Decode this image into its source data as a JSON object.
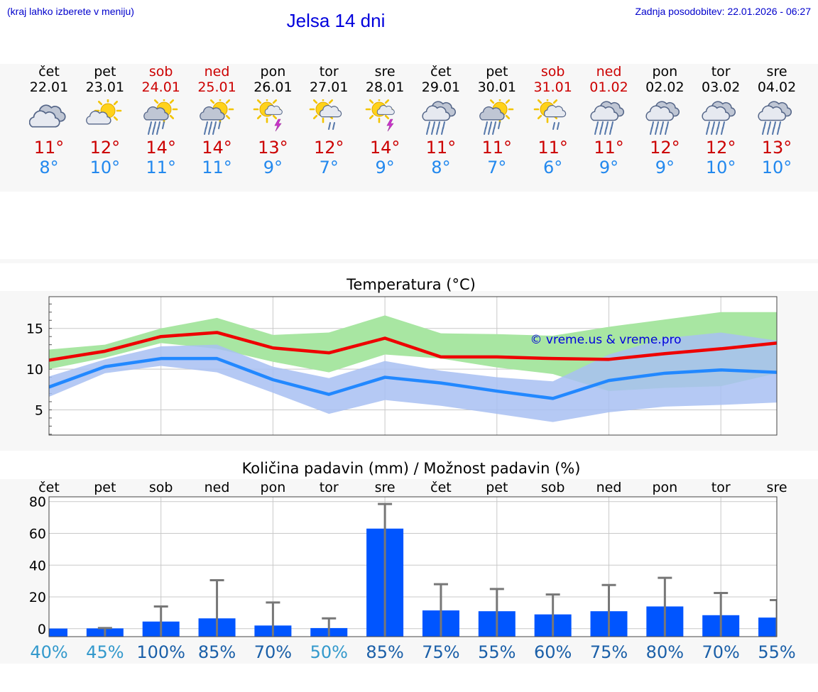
{
  "header": {
    "location_hint": "(kraj lahko izberete v meniju)",
    "title": "Jelsa 14 dni",
    "updated": "Zadnja posodobitev: 22.01.2026 - 06:27"
  },
  "colors": {
    "max_temp": "#cc0000",
    "min_temp": "#2288ee",
    "max_line": "#ee0000",
    "min_line": "#2288ff",
    "max_band": "#a8e6a2",
    "min_band": "#a8c0f2",
    "overlap_band": "#7fc0a4",
    "bar": "#0055ff",
    "error_bar": "#777777",
    "weekend": "#cc0000"
  },
  "days": [
    {
      "name": "čet",
      "date": "22.01",
      "weekend": false,
      "icon": "cloudy-icon",
      "max": "11°",
      "min": "8°"
    },
    {
      "name": "pet",
      "date": "23.01",
      "weekend": false,
      "icon": "sun-cloud-icon",
      "max": "12°",
      "min": "10°"
    },
    {
      "name": "sob",
      "date": "24.01",
      "weekend": true,
      "icon": "sun-cloud-rain-icon",
      "max": "14°",
      "min": "11°"
    },
    {
      "name": "ned",
      "date": "25.01",
      "weekend": true,
      "icon": "sun-cloud-rain-icon",
      "max": "14°",
      "min": "11°"
    },
    {
      "name": "pon",
      "date": "26.01",
      "weekend": false,
      "icon": "sun-thunder-icon",
      "max": "13°",
      "min": "9°"
    },
    {
      "name": "tor",
      "date": "27.01",
      "weekend": false,
      "icon": "sun-cloud-light-rain-icon",
      "max": "12°",
      "min": "7°"
    },
    {
      "name": "sre",
      "date": "28.01",
      "weekend": false,
      "icon": "sun-thunder-icon",
      "max": "14°",
      "min": "9°"
    },
    {
      "name": "čet",
      "date": "29.01",
      "weekend": false,
      "icon": "cloud-rain-icon",
      "max": "11°",
      "min": "8°"
    },
    {
      "name": "pet",
      "date": "30.01",
      "weekend": false,
      "icon": "sun-cloud-rain-icon",
      "max": "11°",
      "min": "7°"
    },
    {
      "name": "sob",
      "date": "31.01",
      "weekend": true,
      "icon": "sun-cloud-light-rain-icon",
      "max": "11°",
      "min": "6°"
    },
    {
      "name": "ned",
      "date": "01.02",
      "weekend": true,
      "icon": "cloud-rain-icon",
      "max": "11°",
      "min": "9°"
    },
    {
      "name": "pon",
      "date": "02.02",
      "weekend": false,
      "icon": "cloud-rain-icon",
      "max": "12°",
      "min": "9°"
    },
    {
      "name": "tor",
      "date": "03.02",
      "weekend": false,
      "icon": "cloud-rain-icon",
      "max": "12°",
      "min": "10°"
    },
    {
      "name": "sre",
      "date": "04.02",
      "weekend": false,
      "icon": "cloud-rain-icon",
      "max": "13°",
      "min": "10°"
    }
  ],
  "chart_data": [
    {
      "type": "area",
      "title": "Temperatura (°C)",
      "watermark": "© vreme.us & vreme.pro",
      "yticks": [
        5,
        10,
        15
      ],
      "ylim": [
        1.9,
        18.9
      ],
      "x": [
        "22.01",
        "23.01",
        "24.01",
        "25.01",
        "26.01",
        "27.01",
        "28.01",
        "29.01",
        "30.01",
        "31.01",
        "01.02",
        "02.02",
        "03.02",
        "04.02"
      ],
      "series": [
        {
          "name": "max",
          "values": [
            11.1,
            12.2,
            14.0,
            14.5,
            12.6,
            12.0,
            13.8,
            11.5,
            11.5,
            11.3,
            11.2,
            11.9,
            12.5,
            13.2
          ]
        },
        {
          "name": "min",
          "values": [
            7.8,
            10.3,
            11.3,
            11.3,
            8.7,
            6.9,
            9.0,
            8.3,
            7.3,
            6.4,
            8.6,
            9.5,
            9.9,
            9.6
          ]
        }
      ],
      "bands": [
        {
          "name": "max_range",
          "upper": [
            12.4,
            13.0,
            15.0,
            16.3,
            14.2,
            14.5,
            16.6,
            14.4,
            14.3,
            14.1,
            15.2,
            16.1,
            17.0,
            17.0
          ],
          "lower": [
            10.0,
            11.4,
            13.2,
            12.5,
            10.9,
            9.6,
            11.8,
            11.3,
            10.2,
            9.4,
            7.3,
            7.7,
            7.9,
            9.5
          ]
        },
        {
          "name": "min_range",
          "upper": [
            9.1,
            11.2,
            12.8,
            13.0,
            10.3,
            8.9,
            11.0,
            9.8,
            9.0,
            8.5,
            11.8,
            13.8,
            14.5,
            13.5
          ],
          "lower": [
            6.6,
            9.5,
            10.4,
            9.6,
            7.1,
            4.5,
            6.2,
            5.5,
            4.5,
            3.5,
            4.7,
            5.4,
            5.6,
            5.9
          ]
        }
      ]
    },
    {
      "type": "bar",
      "title": "Količina padavin (mm) / Možnost padavin (%)",
      "categories": [
        "čet",
        "pet",
        "sob",
        "ned",
        "pon",
        "tor",
        "sre",
        "čet",
        "pet",
        "sob",
        "ned",
        "pon",
        "tor",
        "sre"
      ],
      "yticks": [
        0,
        20,
        40,
        60,
        80
      ],
      "ylim": [
        -5,
        83
      ],
      "values": [
        0.1,
        0.2,
        4.5,
        6.5,
        2.0,
        0.4,
        63,
        11.5,
        11,
        9,
        11,
        14,
        8.5,
        7
      ],
      "error_high": [
        0,
        0.4,
        14,
        30.5,
        16.5,
        6.5,
        78.5,
        28,
        25,
        21.5,
        27.5,
        32,
        22.5,
        18
      ],
      "probability": [
        "40%",
        "45%",
        "100%",
        "85%",
        "70%",
        "50%",
        "85%",
        "75%",
        "55%",
        "60%",
        "75%",
        "80%",
        "70%",
        "55%"
      ],
      "probability_values": [
        40,
        45,
        100,
        85,
        70,
        50,
        85,
        75,
        55,
        60,
        75,
        80,
        70,
        55
      ]
    }
  ]
}
